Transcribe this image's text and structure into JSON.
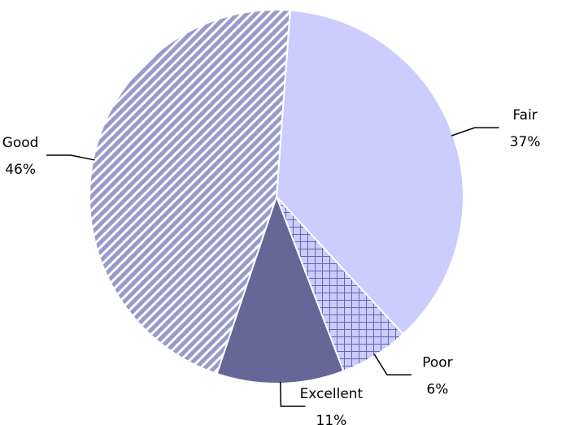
{
  "chart_data": {
    "type": "pie",
    "categories": [
      "Fair",
      "Poor",
      "Excellent",
      "Good"
    ],
    "values": [
      37,
      6,
      11,
      46
    ],
    "value_labels": [
      "37%",
      "6%",
      "11%",
      "46%"
    ],
    "colors": [
      "#ccccff",
      "#ccccff",
      "#666699",
      "#9999cc"
    ],
    "patterns": [
      "none",
      "crosshatch",
      "none",
      "diagonal"
    ]
  }
}
